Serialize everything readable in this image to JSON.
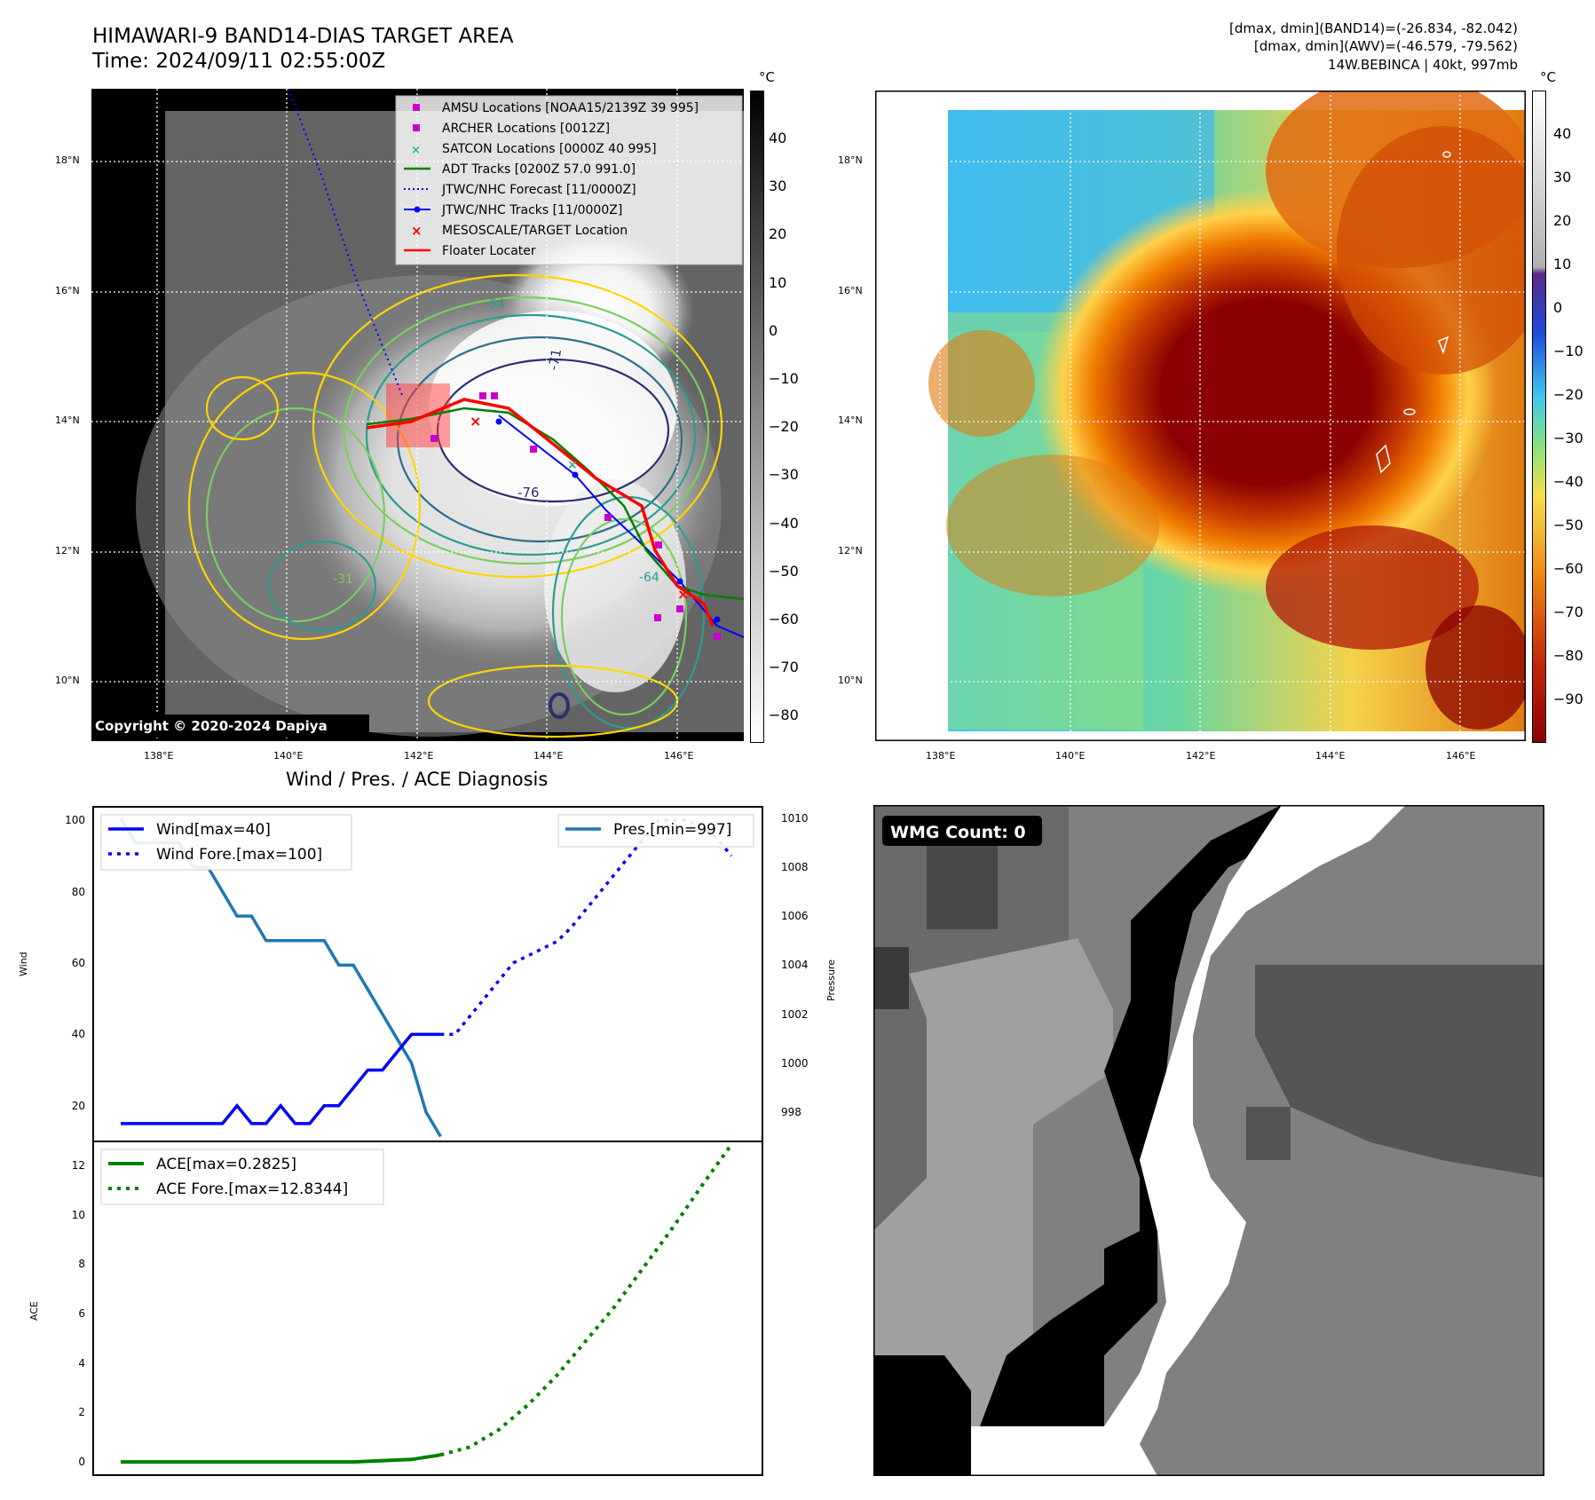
{
  "header": {
    "title": "HIMAWARI-9 BAND14-DIAS TARGET AREA",
    "time": "Time: 2024/09/11 02:55:00Z",
    "info_line1": "[dmax, dmin](BAND14)=(-26.834, -82.042)",
    "info_line2": "[dmax, dmin](AWV)=(-46.579, -79.562)",
    "info_line3": "14W.BEBINCA | 40kt, 997mb"
  },
  "map_left": {
    "copyright": "Copyright © 2020-2024 Dapiya",
    "colorbar_unit": "°C",
    "colorbar_ticks": [
      "40",
      "30",
      "20",
      "10",
      "0",
      "−10",
      "−20",
      "−30",
      "−40",
      "−50",
      "−60",
      "−70",
      "−80"
    ],
    "lat_labels": [
      "18°N",
      "16°N",
      "14°N",
      "12°N",
      "10°N"
    ],
    "lon_labels": [
      "138°E",
      "140°E",
      "142°E",
      "144°E",
      "146°E"
    ],
    "contour_labels": [
      "-76",
      "-71",
      "-54",
      "-31",
      "-64"
    ],
    "legend": [
      {
        "label": "AMSU Locations [NOAA15/2139Z 39 995]",
        "color": "#cc00cc",
        "marker": "square"
      },
      {
        "label": "ARCHER Locations [0012Z]",
        "color": "#cc00cc",
        "marker": "square"
      },
      {
        "label": "SATCON Locations [0000Z 40 995]",
        "color": "#20b2aa",
        "marker": "x"
      },
      {
        "label": "ADT Tracks [0200Z 57.0 991.0]",
        "color": "#008000",
        "marker": "line"
      },
      {
        "label": "JTWC/NHC Forecast [11/0000Z]",
        "color": "#0000ff",
        "marker": "dotted"
      },
      {
        "label": "JTWC/NHC Tracks [11/0000Z]",
        "color": "#0000ff",
        "marker": "line-dot"
      },
      {
        "label": "MESOSCALE/TARGET Location",
        "color": "#ff0000",
        "marker": "x"
      },
      {
        "label": "Floater Locater",
        "color": "#ff0000",
        "marker": "line"
      }
    ]
  },
  "map_right": {
    "colorbar_unit": "°C",
    "colorbar_ticks": [
      "40",
      "30",
      "20",
      "10",
      "0",
      "−10",
      "−20",
      "−30",
      "−40",
      "−50",
      "−60",
      "−70",
      "−80",
      "−90"
    ],
    "lat_labels": [
      "18°N",
      "16°N",
      "14°N",
      "12°N",
      "10°N"
    ],
    "lon_labels": [
      "138°E",
      "140°E",
      "142°E",
      "144°E",
      "146°E"
    ]
  },
  "wind_panel": {
    "title": "Wind / Pres. / ACE Diagnosis",
    "ylabel_left": "Wind",
    "ylabel_right": "Pressure",
    "legend_wind": "Wind[max=40]",
    "legend_wind_fore": "Wind Fore.[max=100]",
    "legend_pres": "Pres.[min=997]",
    "left_ticks": [
      "100",
      "80",
      "60",
      "40",
      "20"
    ],
    "right_ticks": [
      "1010",
      "1008",
      "1006",
      "1004",
      "1002",
      "1000",
      "998"
    ]
  },
  "ace_panel": {
    "ylabel": "ACE",
    "legend_ace": "ACE[max=0.2825]",
    "legend_ace_fore": "ACE Fore.[max=12.8344]",
    "ticks": [
      "12",
      "10",
      "8",
      "6",
      "4",
      "2",
      "0"
    ]
  },
  "wmg_panel": {
    "badge": "WMG Count: 0"
  },
  "chart_data": [
    {
      "type": "line",
      "title": "Wind / Pres. / ACE Diagnosis",
      "xlabel": "",
      "ylabel": "Wind",
      "ylim": [
        10,
        104
      ],
      "x_index_range": [
        0,
        42
      ],
      "series": [
        {
          "name": "Wind[max=40]",
          "style": "solid",
          "color": "#0000ff",
          "x": [
            0,
            1,
            2,
            3,
            4,
            5,
            6,
            7,
            8,
            9,
            10,
            11,
            12,
            13,
            14,
            15,
            16,
            17,
            18,
            19,
            20,
            21,
            22
          ],
          "values": [
            15,
            15,
            15,
            15,
            15,
            15,
            15,
            15,
            20,
            15,
            15,
            20,
            15,
            15,
            20,
            20,
            25,
            30,
            30,
            35,
            40,
            40,
            40
          ]
        },
        {
          "name": "Wind Fore.[max=100]",
          "style": "dotted",
          "color": "#0000ff",
          "x": [
            22,
            23,
            24,
            25,
            26,
            27,
            28,
            29,
            30,
            31,
            32,
            33,
            34,
            35,
            36,
            37,
            38,
            39,
            40,
            41,
            42
          ],
          "values": [
            40,
            40,
            45,
            50,
            55,
            60,
            62,
            64,
            66,
            70,
            75,
            80,
            85,
            90,
            95,
            100,
            100,
            100,
            98,
            95,
            90
          ]
        }
      ]
    },
    {
      "type": "line",
      "ylabel": "Pressure",
      "ylim": [
        996.8,
        1010.5
      ],
      "series": [
        {
          "name": "Pres.[min=997]",
          "style": "solid",
          "color": "#1f77b4",
          "x": [
            0,
            1,
            2,
            3,
            4,
            5,
            6,
            7,
            8,
            9,
            10,
            11,
            12,
            13,
            14,
            15,
            16,
            17,
            18,
            19,
            20,
            21,
            22
          ],
          "values": [
            1010,
            1009,
            1009,
            1009,
            1009,
            1008,
            1008,
            1007,
            1006,
            1006,
            1005,
            1005,
            1005,
            1005,
            1005,
            1004,
            1004,
            1003,
            1002,
            1001,
            1000,
            998,
            997
          ]
        }
      ]
    },
    {
      "type": "line",
      "ylabel": "ACE",
      "ylim": [
        -0.5,
        13.0
      ],
      "series": [
        {
          "name": "ACE[max=0.2825]",
          "style": "solid",
          "color": "#008000",
          "x": [
            0,
            4,
            8,
            12,
            16,
            20,
            22
          ],
          "values": [
            0,
            0,
            0,
            0,
            0,
            0.1,
            0.2825
          ]
        },
        {
          "name": "ACE Fore.[max=12.8344]",
          "style": "dotted",
          "color": "#008000",
          "x": [
            22,
            24,
            26,
            28,
            30,
            32,
            34,
            36,
            38,
            40,
            42
          ],
          "values": [
            0.2825,
            0.6,
            1.3,
            2.3,
            3.5,
            4.9,
            6.3,
            7.9,
            9.5,
            11.2,
            12.8344
          ]
        }
      ]
    }
  ]
}
